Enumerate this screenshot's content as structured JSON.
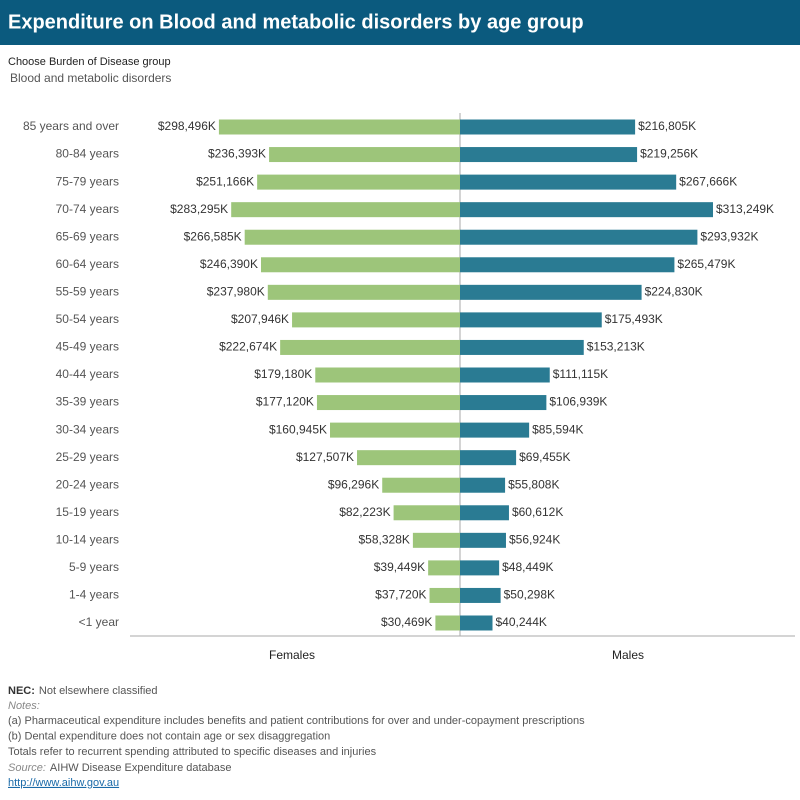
{
  "chart_data": {
    "type": "butterfly-bar",
    "title": "Expenditure on Blood and metabolic disorders by age group",
    "categories": [
      "85 years and over",
      "80-84 years",
      "75-79 years",
      "70-74 years",
      "65-69 years",
      "60-64 years",
      "55-59 years",
      "50-54 years",
      "45-49 years",
      "40-44 years",
      "35-39 years",
      "30-34 years",
      "25-29 years",
      "20-24 years",
      "15-19 years",
      "10-14 years",
      "5-9 years",
      "1-4 years",
      "<1 year"
    ],
    "series": [
      {
        "name": "Females",
        "color": "#9dc57a",
        "values": [
          298496,
          236393,
          251166,
          283295,
          266585,
          246390,
          237980,
          207946,
          222674,
          179180,
          177120,
          160945,
          127507,
          96296,
          82223,
          58328,
          39449,
          37720,
          30469
        ],
        "value_labels": [
          "$298,496K",
          "$236,393K",
          "$251,166K",
          "$283,295K",
          "$266,585K",
          "$246,390K",
          "$237,980K",
          "$207,946K",
          "$222,674K",
          "$179,180K",
          "$177,120K",
          "$160,945K",
          "$127,507K",
          "$96,296K",
          "$82,223K",
          "$58,328K",
          "$39,449K",
          "$37,720K",
          "$30,469K"
        ]
      },
      {
        "name": "Males",
        "color": "#2a7b93",
        "values": [
          216805,
          219256,
          267666,
          313249,
          293932,
          265479,
          224830,
          175493,
          153213,
          111115,
          106939,
          85594,
          69455,
          55808,
          60612,
          56924,
          48449,
          50298,
          40244
        ],
        "value_labels": [
          "$216,805K",
          "$219,256K",
          "$267,666K",
          "$313,249K",
          "$293,932K",
          "$265,479K",
          "$224,830K",
          "$175,493K",
          "$153,213K",
          "$111,115K",
          "$106,939K",
          "$85,594K",
          "$69,455K",
          "$55,808K",
          "$60,612K",
          "$56,924K",
          "$48,449K",
          "$50,298K",
          "$40,244K"
        ]
      }
    ]
  },
  "filter": {
    "label": "Choose Burden of Disease group",
    "value": "Blood and metabolic disorders"
  },
  "footer": {
    "nec": {
      "term": "NEC:",
      "text": "Not elsewhere classified"
    },
    "notes_heading": "Notes:",
    "notes": [
      "(a) Pharmaceutical expenditure includes benefits and patient contributions for over and under-copayment prescriptions",
      "(b) Dental expenditure does not contain age or sex disaggregation",
      "Totals refer to recurrent spending attributed to specific diseases and injuries"
    ],
    "source": {
      "label": "Source:",
      "text": "AIHW Disease Expenditure database"
    },
    "link": "http://www.aihw.gov.au"
  }
}
